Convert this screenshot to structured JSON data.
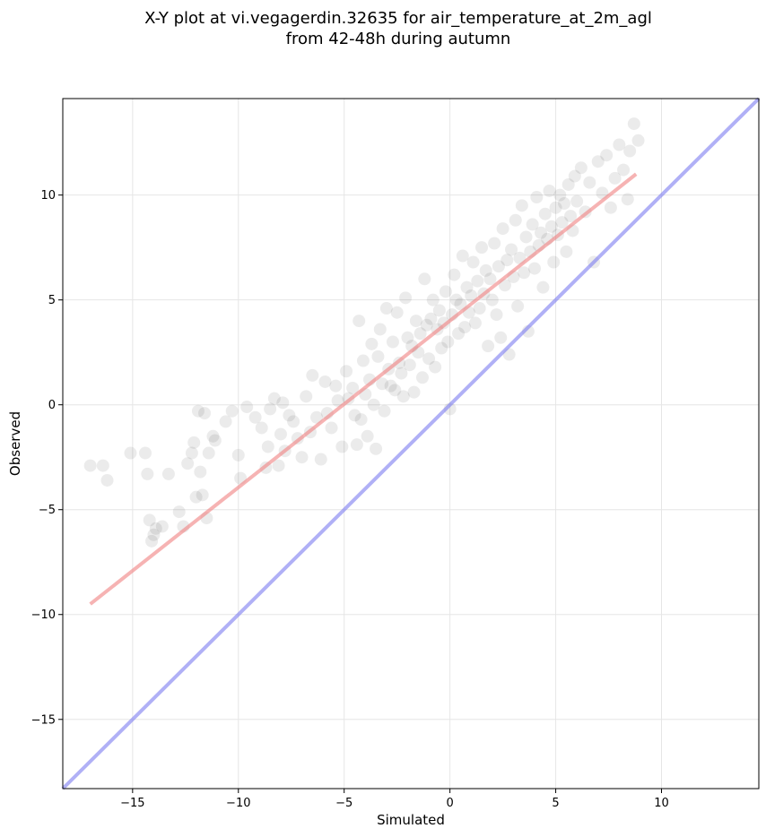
{
  "chart_data": {
    "type": "scatter",
    "title_lines": [
      "X-Y plot at vi.vegagerdin.32635 for air_temperature_at_2m_agl",
      "from 42-48h during autumn"
    ],
    "xlabel": "Simulated",
    "ylabel": "Observed",
    "xlim": [
      -18.3,
      14.6
    ],
    "ylim": [
      -18.3,
      14.6
    ],
    "xticks": [
      -15,
      -10,
      -5,
      0,
      5,
      10
    ],
    "yticks": [
      -15,
      -10,
      -5,
      0,
      5,
      10
    ],
    "xtick_labels": [
      "−15",
      "−10",
      "−5",
      "0",
      "5",
      "10"
    ],
    "ytick_labels": [
      "−15",
      "−10",
      "−5",
      "0",
      "5",
      "10"
    ],
    "grid": true,
    "colors": {
      "points": "#000000",
      "fit_line": "#f08080",
      "identity_line": "#7b7bf0"
    },
    "series": [
      {
        "kind": "points",
        "opacity": 0.08,
        "x": [
          -17.0,
          -16.4,
          -16.2,
          -15.1,
          -14.4,
          -14.3,
          -14.2,
          -14.1,
          -14.0,
          -13.9,
          -13.6,
          -13.3,
          -12.8,
          -12.6,
          -12.4,
          -12.2,
          -12.1,
          -12.0,
          -11.9,
          -11.8,
          -11.7,
          -11.6,
          -11.5,
          -11.4,
          -11.2,
          -11.1,
          -10.6,
          -10.3,
          -10.0,
          -9.9,
          -9.6,
          -9.2,
          -8.9,
          -8.7,
          -8.6,
          -8.5,
          -8.3,
          -8.1,
          -8.0,
          -7.9,
          -7.8,
          -7.6,
          -7.4,
          -7.2,
          -7.0,
          -6.8,
          -6.6,
          -6.5,
          -6.3,
          -6.1,
          -5.9,
          -5.8,
          -5.6,
          -5.4,
          -5.3,
          -5.1,
          -4.9,
          -4.8,
          -4.6,
          -4.5,
          -4.4,
          -4.3,
          -4.2,
          -4.1,
          -4.0,
          -3.9,
          -3.8,
          -3.7,
          -3.6,
          -3.5,
          -3.4,
          -3.3,
          -3.2,
          -3.1,
          -3.0,
          -2.9,
          -2.8,
          -2.7,
          -2.6,
          -2.5,
          -2.4,
          -2.3,
          -2.2,
          -2.1,
          -2.0,
          -1.9,
          -1.8,
          -1.7,
          -1.6,
          -1.5,
          -1.4,
          -1.3,
          -1.2,
          -1.1,
          -1.0,
          -0.9,
          -0.8,
          -0.7,
          -0.6,
          -0.5,
          -0.4,
          -0.3,
          -0.2,
          -0.1,
          0.0,
          0.1,
          0.2,
          0.3,
          0.4,
          0.5,
          0.6,
          0.7,
          0.8,
          0.9,
          1.0,
          1.1,
          1.2,
          1.3,
          1.4,
          1.5,
          1.6,
          1.7,
          1.8,
          1.9,
          2.0,
          2.1,
          2.2,
          2.3,
          2.4,
          2.5,
          2.6,
          2.7,
          2.8,
          2.9,
          3.0,
          3.1,
          3.2,
          3.3,
          3.4,
          3.5,
          3.6,
          3.7,
          3.8,
          3.9,
          4.0,
          4.1,
          4.2,
          4.3,
          4.4,
          4.5,
          4.6,
          4.7,
          4.8,
          4.9,
          5.0,
          5.1,
          5.2,
          5.3,
          5.4,
          5.5,
          5.6,
          5.7,
          5.8,
          5.9,
          6.0,
          6.2,
          6.4,
          6.6,
          6.8,
          7.0,
          7.2,
          7.4,
          7.6,
          7.8,
          8.0,
          8.2,
          8.4,
          8.5,
          8.7,
          8.9
        ],
        "y": [
          -2.9,
          -2.9,
          -3.6,
          -2.3,
          -2.3,
          -3.3,
          -5.5,
          -6.5,
          -6.2,
          -5.9,
          -5.8,
          -3.3,
          -5.1,
          -5.8,
          -2.8,
          -2.3,
          -1.8,
          -4.4,
          -0.3,
          -3.2,
          -4.3,
          -0.4,
          -5.4,
          -2.3,
          -1.5,
          -1.7,
          -0.8,
          -0.3,
          -2.4,
          -3.5,
          -0.1,
          -0.6,
          -1.1,
          -3.0,
          -2.0,
          -0.2,
          0.3,
          -2.9,
          -1.4,
          0.1,
          -2.2,
          -0.5,
          -0.8,
          -1.6,
          -2.5,
          0.4,
          -1.3,
          1.4,
          -0.6,
          -2.6,
          1.1,
          -0.4,
          -1.1,
          0.9,
          0.2,
          -2.0,
          1.6,
          0.3,
          0.8,
          -0.5,
          -1.9,
          4.0,
          -0.7,
          2.1,
          0.5,
          -1.5,
          1.2,
          2.9,
          0.0,
          -2.1,
          2.3,
          3.6,
          1.0,
          -0.3,
          4.6,
          1.7,
          0.9,
          3.0,
          0.7,
          4.4,
          2.0,
          1.5,
          0.4,
          5.1,
          3.2,
          1.9,
          2.8,
          0.6,
          4.0,
          2.5,
          3.4,
          1.3,
          6.0,
          3.8,
          2.2,
          4.1,
          5.0,
          1.8,
          3.6,
          4.5,
          2.7,
          3.9,
          5.4,
          3.0,
          -0.2,
          4.3,
          6.2,
          5.0,
          3.4,
          4.8,
          7.1,
          3.7,
          5.6,
          4.4,
          5.2,
          6.8,
          3.9,
          5.9,
          4.6,
          7.5,
          5.3,
          6.4,
          2.8,
          6.0,
          5.0,
          7.7,
          4.3,
          6.6,
          3.2,
          8.4,
          5.7,
          6.9,
          2.4,
          7.4,
          6.1,
          8.8,
          4.7,
          7.0,
          9.5,
          6.3,
          8.0,
          3.5,
          7.3,
          8.6,
          6.5,
          9.9,
          7.6,
          8.2,
          5.6,
          9.1,
          7.9,
          10.2,
          8.5,
          6.8,
          9.4,
          8.1,
          10.0,
          8.7,
          9.6,
          7.3,
          10.5,
          9.0,
          8.3,
          10.9,
          9.7,
          11.3,
          9.2,
          10.6,
          6.8,
          11.6,
          10.1,
          11.9,
          9.4,
          10.8,
          12.4,
          11.2,
          9.8,
          12.1,
          13.4,
          12.6
        ]
      },
      {
        "kind": "fit_line",
        "x": [
          -17.0,
          8.8
        ],
        "y": [
          -9.5,
          11.0
        ]
      },
      {
        "kind": "identity_line",
        "x": [
          -18.3,
          14.6
        ],
        "y": [
          -18.3,
          14.6
        ]
      }
    ]
  }
}
